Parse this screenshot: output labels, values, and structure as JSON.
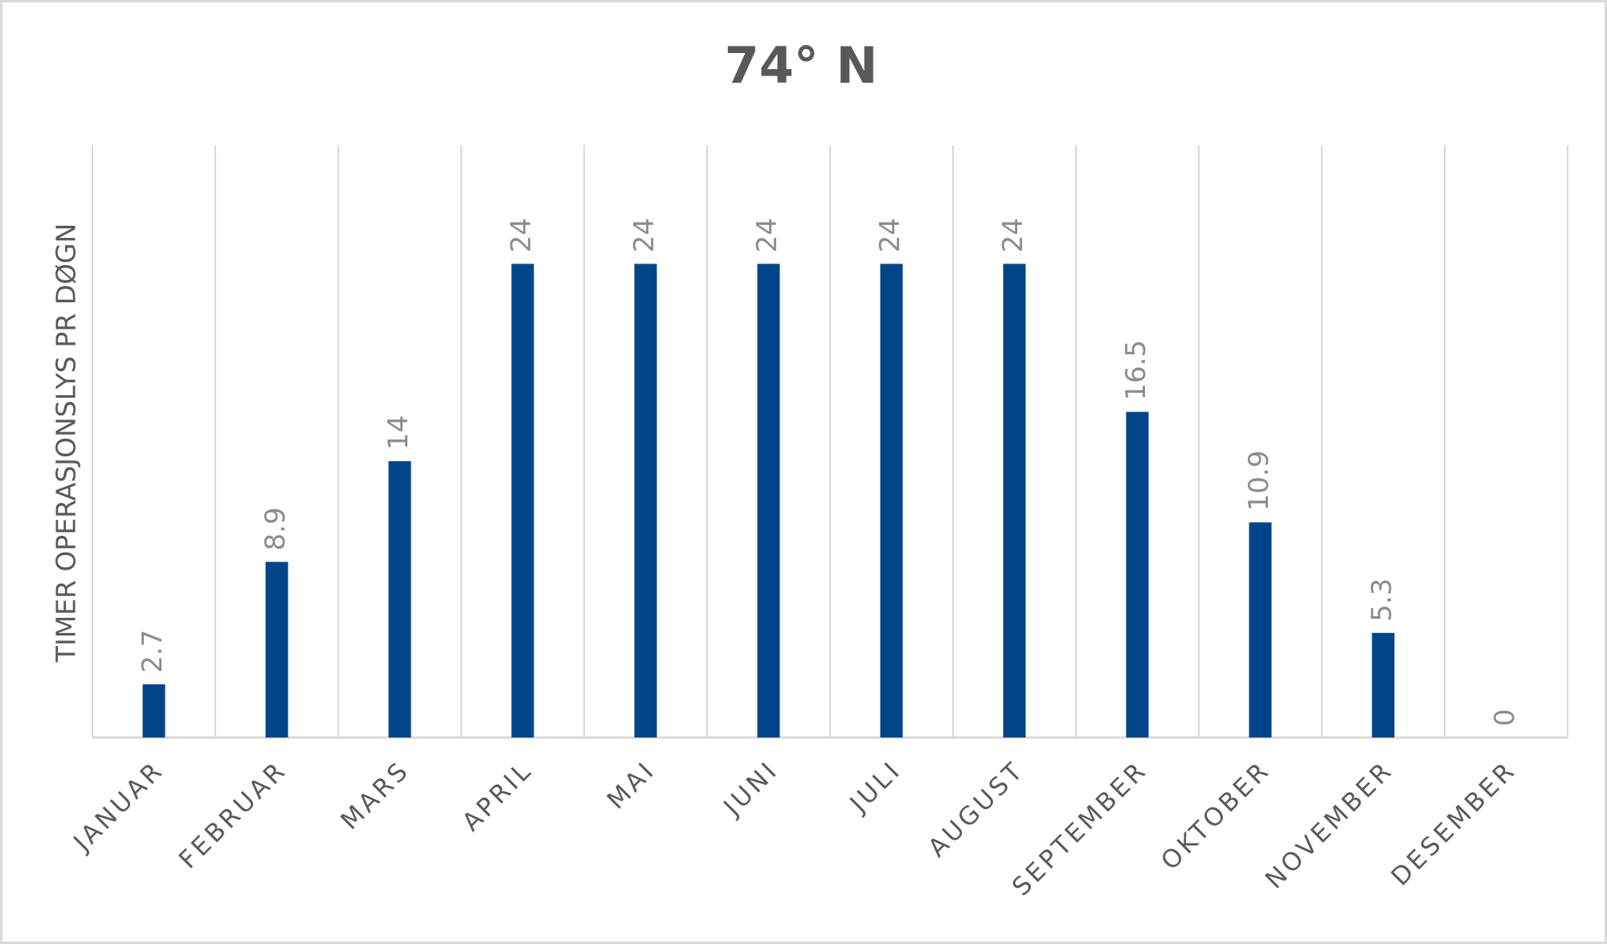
{
  "chart_data": {
    "type": "bar",
    "title": "74° N",
    "y_label": "TIMER OPERASJONSLYS PR DØGN",
    "categories": [
      "JANUAR",
      "FEBRUAR",
      "MARS",
      "APRIL",
      "MAI",
      "JUNI",
      "JULI",
      "AUGUST",
      "SEPTEMBER",
      "OKTOBER",
      "NOVEMBER",
      "DESEMBER"
    ],
    "values": [
      2.7,
      8.9,
      14,
      24,
      24,
      24,
      24,
      24,
      16.5,
      10.9,
      5.3,
      0
    ],
    "color": "#004589",
    "ylim": [
      0,
      30
    ],
    "grid": true
  }
}
